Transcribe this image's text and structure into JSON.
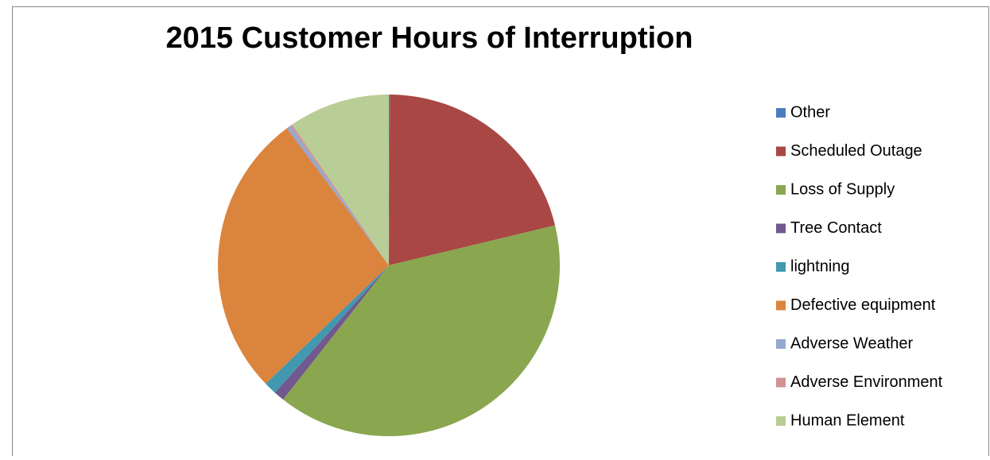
{
  "chart_data": {
    "type": "pie",
    "title": "2015 Customer Hours of Interruption",
    "categories": [
      "Other",
      "Scheduled Outage",
      "Loss of Supply",
      "Tree Contact",
      "lightning",
      "Defective equipment",
      "Adverse Weather",
      "Adverse Environment",
      "Human Element"
    ],
    "values": [
      0.1,
      21.2,
      39.5,
      1.0,
      1.2,
      27.1,
      0.4,
      0.2,
      9.6
    ],
    "colors": [
      "#4a7ebb",
      "#a84744",
      "#8aa64f",
      "#71588f",
      "#4198af",
      "#db843d",
      "#93a9cf",
      "#d19392",
      "#b9cd96"
    ],
    "legend": "right"
  }
}
